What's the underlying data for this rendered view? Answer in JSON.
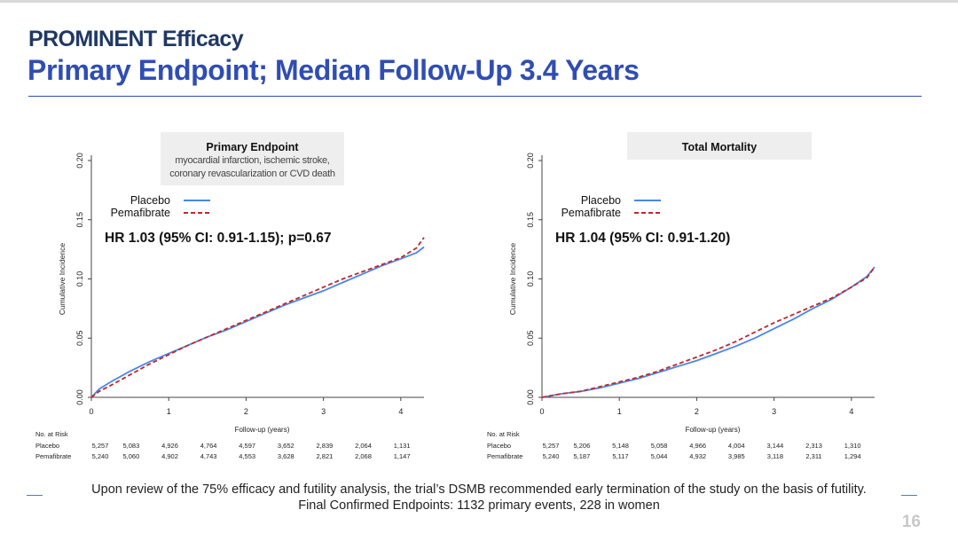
{
  "slide": {
    "kicker": "PROMINENT Efficacy",
    "title": "Primary Endpoint; Median Follow-Up 3.4 Years",
    "footnote_line1": "Upon review of the 75% efficacy and futility analysis, the trial’s DSMB recommended early termination of the study on the basis of futility.",
    "footnote_line2": "Final Confirmed Endpoints: 1132 primary events, 228 in women",
    "page_number": "16"
  },
  "colors": {
    "placebo": "#4a86e8",
    "pemafibrate": "#c0282d",
    "title_dark": "#1f3864",
    "title_blue": "#2f4db3"
  },
  "chart_data": [
    {
      "type": "line",
      "title": "Primary Endpoint",
      "subtitle_lines": [
        "myocardial infarction, ischemic stroke,",
        "coronary revascularization or CVD death"
      ],
      "hr_text": "HR 1.03 (95% CI: 0.91-1.15); p=0.67",
      "xlabel": "Follow-up (years)",
      "ylabel": "Cumulative Incidence",
      "xlim": [
        0,
        4.3
      ],
      "ylim": [
        0,
        0.2
      ],
      "x_ticks": [
        "0",
        "1",
        "2",
        "3",
        "4"
      ],
      "y_ticks": [
        "0.00",
        "0.05",
        "0.10",
        "0.15",
        "0.20"
      ],
      "legend_position": "top-left",
      "series": [
        {
          "name": "Placebo",
          "style": "solid",
          "x": [
            0,
            0.1,
            0.25,
            0.5,
            0.75,
            1.0,
            1.25,
            1.5,
            1.75,
            2.0,
            2.25,
            2.5,
            2.75,
            3.0,
            3.25,
            3.5,
            3.75,
            4.0,
            4.2,
            4.3
          ],
          "y": [
            0,
            0.007,
            0.013,
            0.022,
            0.03,
            0.037,
            0.044,
            0.051,
            0.057,
            0.064,
            0.071,
            0.078,
            0.084,
            0.09,
            0.097,
            0.104,
            0.111,
            0.117,
            0.122,
            0.127
          ]
        },
        {
          "name": "Pemafibrate",
          "style": "dashed",
          "x": [
            0,
            0.1,
            0.25,
            0.5,
            0.75,
            1.0,
            1.25,
            1.5,
            1.75,
            2.0,
            2.25,
            2.5,
            2.75,
            3.0,
            3.25,
            3.5,
            3.75,
            4.0,
            4.2,
            4.3
          ],
          "y": [
            0,
            0.005,
            0.01,
            0.019,
            0.028,
            0.036,
            0.044,
            0.051,
            0.058,
            0.065,
            0.072,
            0.079,
            0.086,
            0.093,
            0.1,
            0.106,
            0.112,
            0.118,
            0.126,
            0.135
          ]
        }
      ],
      "risk_table": {
        "header": "No. at Risk",
        "times": [
          0,
          0.4,
          0.9,
          1.4,
          1.9,
          2.4,
          2.9,
          3.4,
          3.9
        ],
        "rows": [
          {
            "label": "Placebo",
            "values": [
              "5,257",
              "5,083",
              "4,926",
              "4,764",
              "4,597",
              "3,652",
              "2,839",
              "2,064",
              "1,131"
            ]
          },
          {
            "label": "Pemafibrate",
            "values": [
              "5,240",
              "5,060",
              "4,902",
              "4,743",
              "4,553",
              "3,628",
              "2,821",
              "2,068",
              "1,147"
            ]
          }
        ]
      }
    },
    {
      "type": "line",
      "title": "Total Mortality",
      "hr_text": "HR 1.04 (95% CI: 0.91-1.20)",
      "xlabel": "Follow-up (years)",
      "ylabel": "Cumulative Incidence",
      "xlim": [
        0,
        4.3
      ],
      "ylim": [
        0,
        0.2
      ],
      "x_ticks": [
        "0",
        "1",
        "2",
        "3",
        "4"
      ],
      "y_ticks": [
        "0.00",
        "0.05",
        "0.10",
        "0.15",
        "0.20"
      ],
      "legend_position": "top-left",
      "series": [
        {
          "name": "Placebo",
          "style": "solid",
          "x": [
            0,
            0.25,
            0.5,
            0.75,
            1.0,
            1.25,
            1.5,
            1.75,
            2.0,
            2.25,
            2.5,
            2.75,
            3.0,
            3.25,
            3.5,
            3.75,
            4.0,
            4.2,
            4.3
          ],
          "y": [
            0,
            0.003,
            0.005,
            0.008,
            0.012,
            0.016,
            0.021,
            0.026,
            0.031,
            0.037,
            0.043,
            0.05,
            0.058,
            0.066,
            0.075,
            0.083,
            0.093,
            0.102,
            0.11
          ]
        },
        {
          "name": "Pemafibrate",
          "style": "dashed",
          "x": [
            0,
            0.25,
            0.5,
            0.75,
            1.0,
            1.25,
            1.5,
            1.75,
            2.0,
            2.25,
            2.5,
            2.75,
            3.0,
            3.25,
            3.5,
            3.75,
            4.0,
            4.2,
            4.3
          ],
          "y": [
            0,
            0.003,
            0.005,
            0.009,
            0.013,
            0.017,
            0.022,
            0.028,
            0.034,
            0.04,
            0.047,
            0.055,
            0.063,
            0.07,
            0.077,
            0.084,
            0.093,
            0.101,
            0.11
          ]
        }
      ],
      "risk_table": {
        "header": "No. at Risk",
        "times": [
          0,
          0.4,
          0.9,
          1.4,
          1.9,
          2.4,
          2.9,
          3.4,
          3.9
        ],
        "rows": [
          {
            "label": "Placebo",
            "values": [
              "5,257",
              "5,206",
              "5,148",
              "5,058",
              "4,966",
              "4,004",
              "3,144",
              "2,313",
              "1,310"
            ]
          },
          {
            "label": "Pemafibrate",
            "values": [
              "5,240",
              "5,187",
              "5,117",
              "5,044",
              "4,932",
              "3,985",
              "3,118",
              "2,311",
              "1,294"
            ]
          }
        ]
      }
    }
  ]
}
